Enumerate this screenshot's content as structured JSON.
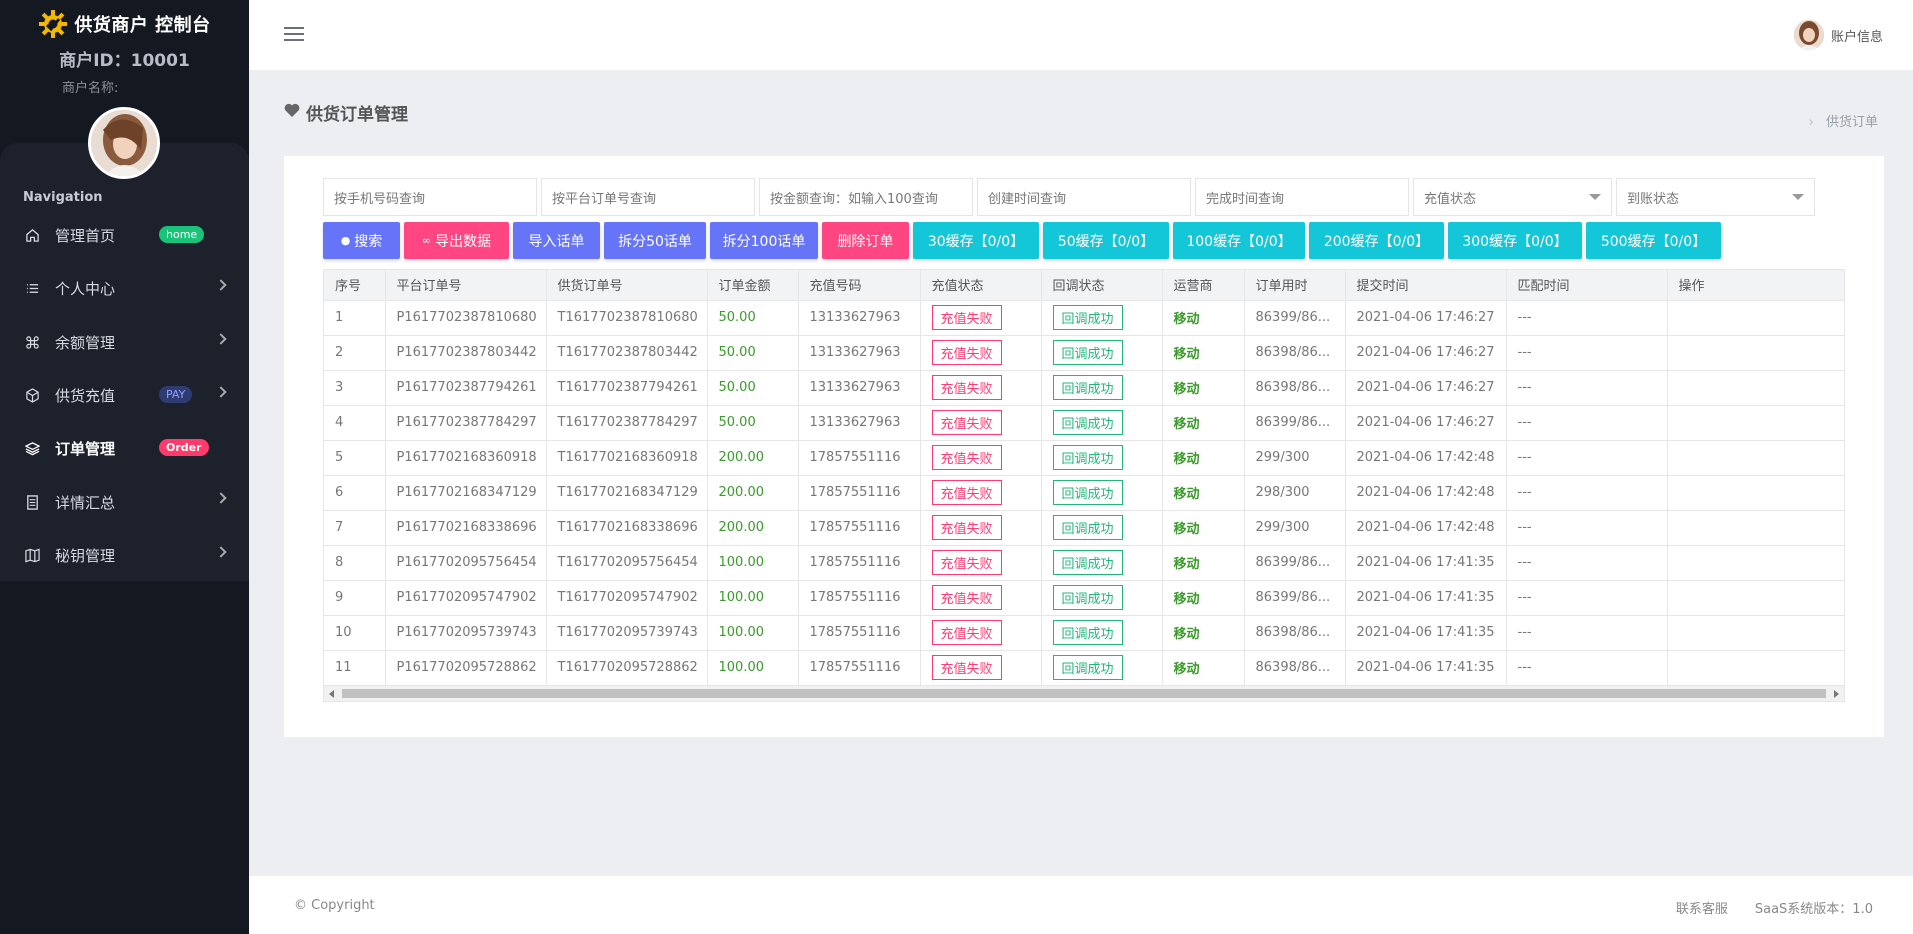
{
  "sidebar": {
    "brand_title": "供货商户 控制台",
    "merchant_id": "商户ID：10001",
    "merchant_name": "商户名称:",
    "nav_title": "Navigation",
    "items": [
      {
        "label": "管理首页",
        "badge": "home",
        "icon": "home-icon"
      },
      {
        "label": "个人中心",
        "icon": "list-icon"
      },
      {
        "label": "余额管理",
        "icon": "command-icon"
      },
      {
        "label": "供货充值",
        "badge": "PAY",
        "icon": "box-icon"
      },
      {
        "label": "订单管理",
        "badge": "Order",
        "icon": "layers-icon"
      },
      {
        "label": "详情汇总",
        "icon": "document-icon"
      },
      {
        "label": "秘钥管理",
        "icon": "map-icon"
      }
    ]
  },
  "topbar": {
    "account_label": "账户信息"
  },
  "page": {
    "title": "供货订单管理",
    "breadcrumb": "供货订单"
  },
  "filters": {
    "phone": "按手机号码查询",
    "platform_order": "按平台订单号查询",
    "amount": "按金额查询：如输入100查询",
    "created": "创建时间查询",
    "completed": "完成时间查询",
    "recharge_status": "充值状态",
    "arrival_status": "到账状态"
  },
  "buttons": {
    "search": "搜索",
    "export": "导出数据",
    "import": "导入话单",
    "split50": "拆分50话单",
    "split100": "拆分100话单",
    "delete": "删除订单",
    "cache30": "30缓存【0/0】",
    "cache50": "50缓存【0/0】",
    "cache100": "100缓存【0/0】",
    "cache200": "200缓存【0/0】",
    "cache300": "300缓存【0/0】",
    "cache500": "500缓存【0/0】"
  },
  "table": {
    "headers": [
      "序号",
      "平台订单号",
      "供货订单号",
      "订单金额",
      "充值号码",
      "充值状态",
      "回调状态",
      "运营商",
      "订单用时",
      "提交时间",
      "匹配时间",
      "操作"
    ],
    "rows": [
      {
        "no": "1",
        "platform": "P1617702387810680",
        "supply": "T1617702387810680",
        "amount": "50.00",
        "phone": "13133627963",
        "status": "充值失败",
        "callback": "回调成功",
        "operator": "移动",
        "duration": "86399/86...",
        "submitted": "2021-04-06 17:46:27",
        "matched": "---"
      },
      {
        "no": "2",
        "platform": "P1617702387803442",
        "supply": "T1617702387803442",
        "amount": "50.00",
        "phone": "13133627963",
        "status": "充值失败",
        "callback": "回调成功",
        "operator": "移动",
        "duration": "86398/86...",
        "submitted": "2021-04-06 17:46:27",
        "matched": "---"
      },
      {
        "no": "3",
        "platform": "P1617702387794261",
        "supply": "T1617702387794261",
        "amount": "50.00",
        "phone": "13133627963",
        "status": "充值失败",
        "callback": "回调成功",
        "operator": "移动",
        "duration": "86398/86...",
        "submitted": "2021-04-06 17:46:27",
        "matched": "---"
      },
      {
        "no": "4",
        "platform": "P1617702387784297",
        "supply": "T1617702387784297",
        "amount": "50.00",
        "phone": "13133627963",
        "status": "充值失败",
        "callback": "回调成功",
        "operator": "移动",
        "duration": "86399/86...",
        "submitted": "2021-04-06 17:46:27",
        "matched": "---"
      },
      {
        "no": "5",
        "platform": "P1617702168360918",
        "supply": "T1617702168360918",
        "amount": "200.00",
        "phone": "17857551116",
        "status": "充值失败",
        "callback": "回调成功",
        "operator": "移动",
        "duration": "299/300",
        "submitted": "2021-04-06 17:42:48",
        "matched": "---"
      },
      {
        "no": "6",
        "platform": "P1617702168347129",
        "supply": "T1617702168347129",
        "amount": "200.00",
        "phone": "17857551116",
        "status": "充值失败",
        "callback": "回调成功",
        "operator": "移动",
        "duration": "298/300",
        "submitted": "2021-04-06 17:42:48",
        "matched": "---"
      },
      {
        "no": "7",
        "platform": "P1617702168338696",
        "supply": "T1617702168338696",
        "amount": "200.00",
        "phone": "17857551116",
        "status": "充值失败",
        "callback": "回调成功",
        "operator": "移动",
        "duration": "299/300",
        "submitted": "2021-04-06 17:42:48",
        "matched": "---"
      },
      {
        "no": "8",
        "platform": "P1617702095756454",
        "supply": "T1617702095756454",
        "amount": "100.00",
        "phone": "17857551116",
        "status": "充值失败",
        "callback": "回调成功",
        "operator": "移动",
        "duration": "86399/86...",
        "submitted": "2021-04-06 17:41:35",
        "matched": "---"
      },
      {
        "no": "9",
        "platform": "P1617702095747902",
        "supply": "T1617702095747902",
        "amount": "100.00",
        "phone": "17857551116",
        "status": "充值失败",
        "callback": "回调成功",
        "operator": "移动",
        "duration": "86399/86...",
        "submitted": "2021-04-06 17:41:35",
        "matched": "---"
      },
      {
        "no": "10",
        "platform": "P1617702095739743",
        "supply": "T1617702095739743",
        "amount": "100.00",
        "phone": "17857551116",
        "status": "充值失败",
        "callback": "回调成功",
        "operator": "移动",
        "duration": "86398/86...",
        "submitted": "2021-04-06 17:41:35",
        "matched": "---"
      },
      {
        "no": "11",
        "platform": "P1617702095728862",
        "supply": "T1617702095728862",
        "amount": "100.00",
        "phone": "17857551116",
        "status": "充值失败",
        "callback": "回调成功",
        "operator": "移动",
        "duration": "86398/86...",
        "submitted": "2021-04-06 17:41:35",
        "matched": "---"
      }
    ]
  },
  "footer": {
    "copyright": "© Copyright",
    "support": "联系客服",
    "version": "SaaS系统版本：1.0"
  },
  "colors": {
    "sidebar_bg": "#141821",
    "accent_blue": "#6674f8",
    "accent_pink": "#ff4683",
    "accent_cyan": "#14c7d8",
    "fail": "#ff3b73",
    "success": "#22b77a"
  }
}
